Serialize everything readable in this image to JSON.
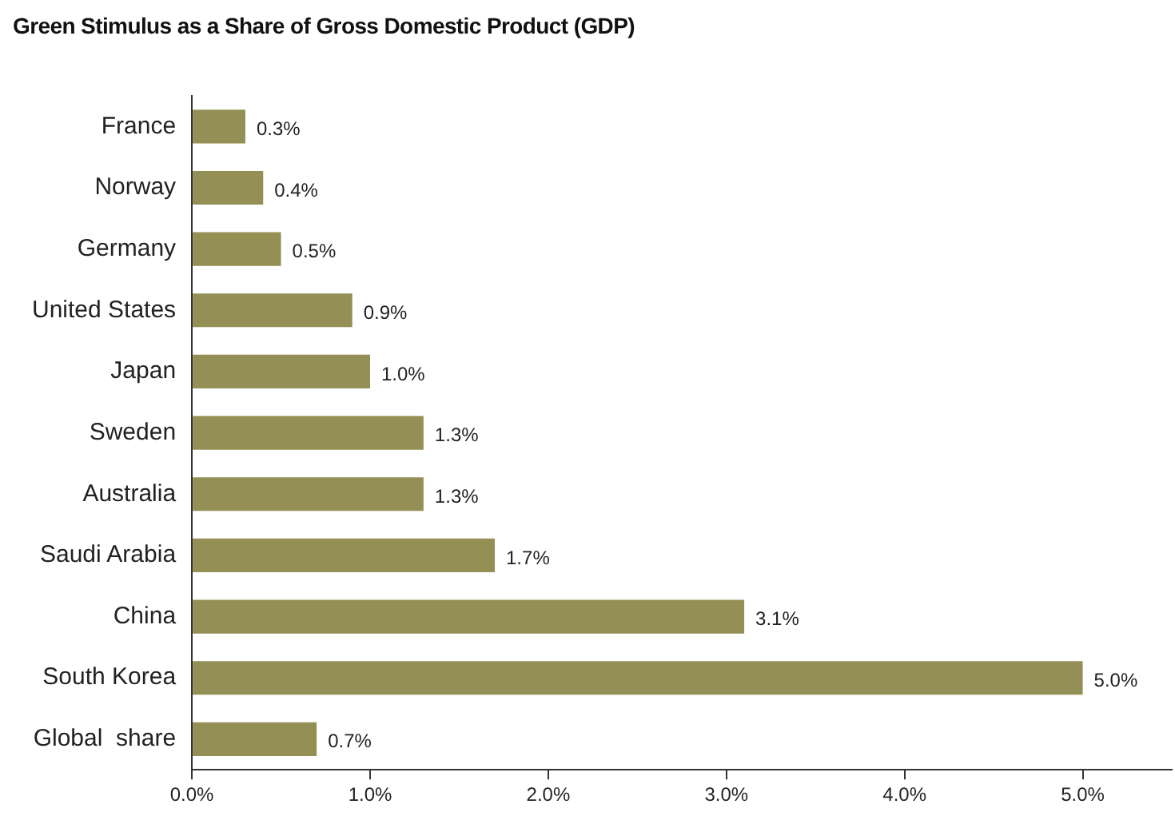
{
  "chart_data": {
    "type": "bar",
    "orientation": "horizontal",
    "title": "Green Stimulus as a Share of Gross Domestic Product (GDP)",
    "categories": [
      "France",
      "Norway",
      "Germany",
      "United States",
      "Japan",
      "Sweden",
      "Australia",
      "Saudi Arabia",
      "China",
      "South Korea",
      "Global  share"
    ],
    "values": [
      0.3,
      0.4,
      0.5,
      0.9,
      1.0,
      1.3,
      1.3,
      1.7,
      3.1,
      5.0,
      0.7
    ],
    "value_labels": [
      "0.3%",
      "0.4%",
      "0.5%",
      "0.9%",
      "1.0%",
      "1.3%",
      "1.3%",
      "1.7%",
      "3.1%",
      "5.0%",
      "0.7%"
    ],
    "color": "#948f55",
    "xlim": [
      0,
      5.5
    ],
    "xticks": [
      {
        "value": 0,
        "label": "0.0%"
      },
      {
        "value": 1,
        "label": "1.0%"
      },
      {
        "value": 2,
        "label": "2.0%"
      },
      {
        "value": 3,
        "label": "3.0%"
      },
      {
        "value": 4,
        "label": "4.0%"
      },
      {
        "value": 5,
        "label": "5.0%"
      }
    ],
    "grid": false,
    "legend": false
  }
}
